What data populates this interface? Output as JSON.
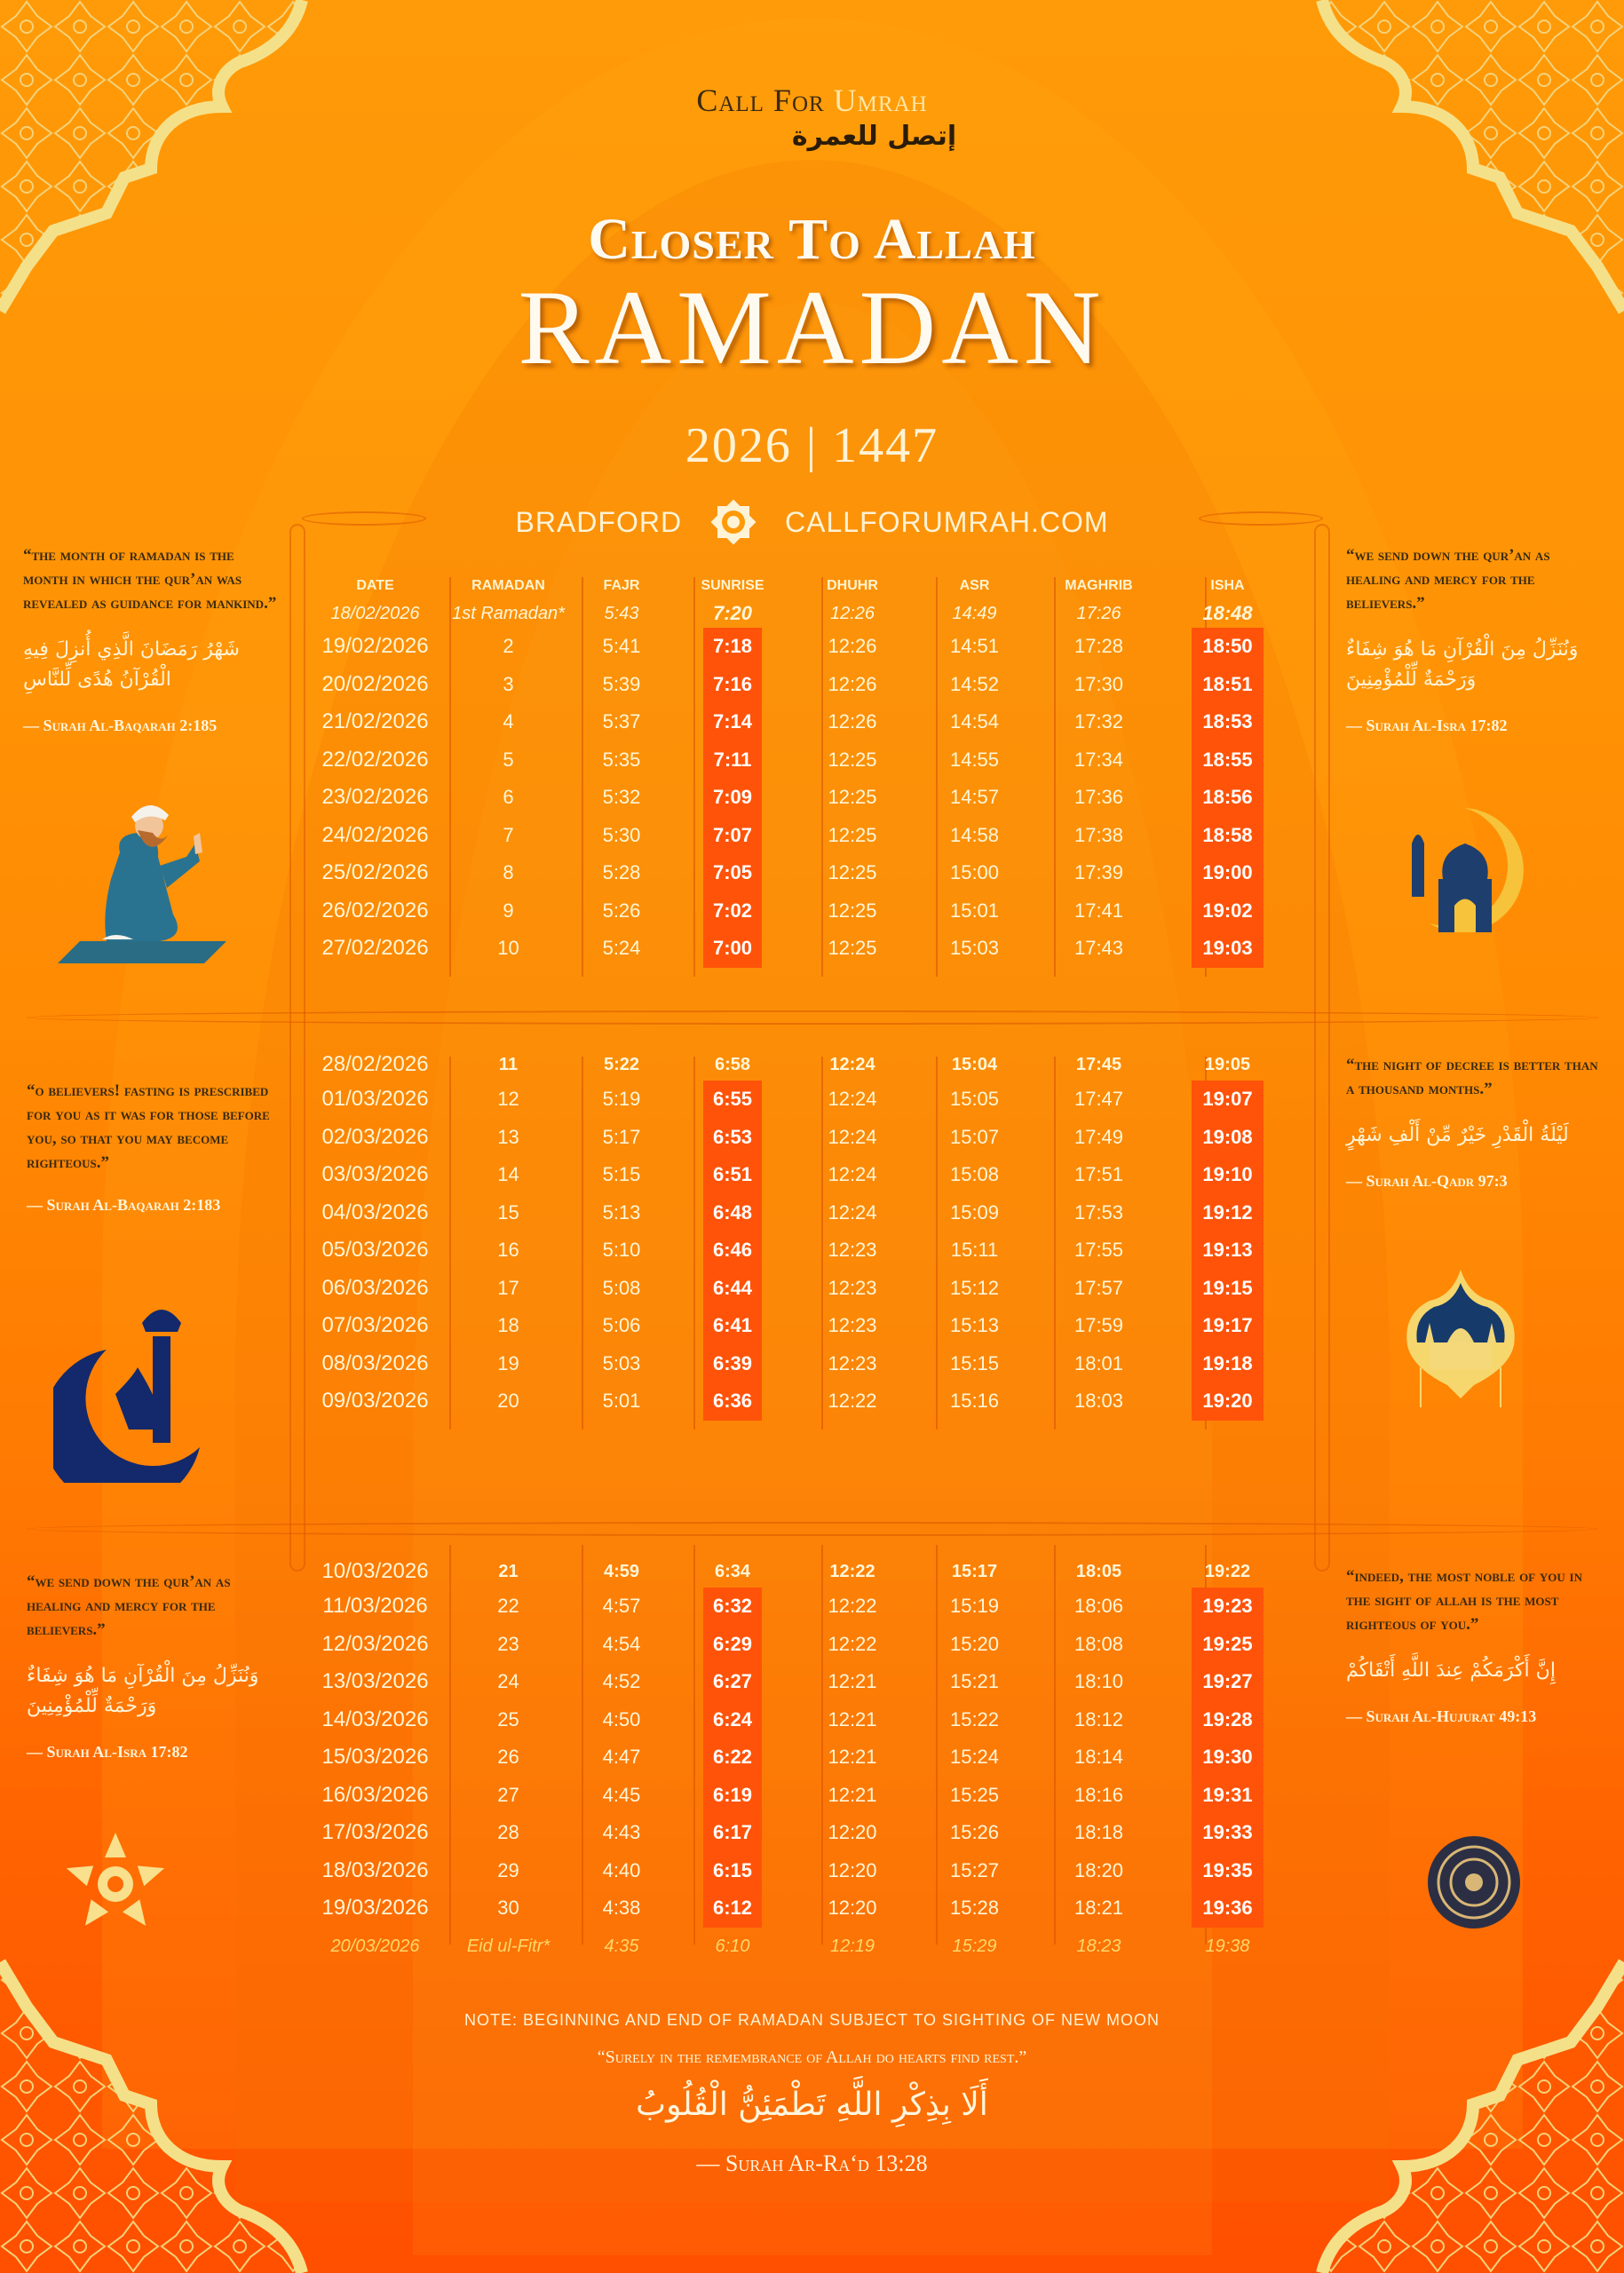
{
  "brand": {
    "name_part1": "Call For ",
    "name_part2": "Umrah",
    "arabic": "إتصل للعمرة"
  },
  "title": {
    "line1": "Closer To Allah",
    "line2": "RAMADAN",
    "years": "2026 | 1447"
  },
  "location": {
    "city": "BRADFORD",
    "website": "CALLFORUMRAH.COM",
    "icon": "eight-point-star-icon"
  },
  "colors": {
    "highlight_column": "#ff5309",
    "quote_text": "#3a2a10",
    "background_top": "#ff9a08",
    "background_bottom": "#ff4f00",
    "eid_text": "#ffd86a"
  },
  "table": {
    "headers": [
      "DATE",
      "RAMADAN",
      "FAJR",
      "SUNRISE",
      "DHUHR",
      "ASR",
      "MAGHRIB",
      "ISHA"
    ],
    "rows": [
      [
        "18/02/2026",
        "1st Ramadan*",
        "5:43",
        "7:20",
        "12:26",
        "14:49",
        "17:26",
        "18:48"
      ],
      [
        "19/02/2026",
        "2",
        "5:41",
        "7:18",
        "12:26",
        "14:51",
        "17:28",
        "18:50"
      ],
      [
        "20/02/2026",
        "3",
        "5:39",
        "7:16",
        "12:26",
        "14:52",
        "17:30",
        "18:51"
      ],
      [
        "21/02/2026",
        "4",
        "5:37",
        "7:14",
        "12:26",
        "14:54",
        "17:32",
        "18:53"
      ],
      [
        "22/02/2026",
        "5",
        "5:35",
        "7:11",
        "12:25",
        "14:55",
        "17:34",
        "18:55"
      ],
      [
        "23/02/2026",
        "6",
        "5:32",
        "7:09",
        "12:25",
        "14:57",
        "17:36",
        "18:56"
      ],
      [
        "24/02/2026",
        "7",
        "5:30",
        "7:07",
        "12:25",
        "14:58",
        "17:38",
        "18:58"
      ],
      [
        "25/02/2026",
        "8",
        "5:28",
        "7:05",
        "12:25",
        "15:00",
        "17:39",
        "19:00"
      ],
      [
        "26/02/2026",
        "9",
        "5:26",
        "7:02",
        "12:25",
        "15:01",
        "17:41",
        "19:02"
      ],
      [
        "27/02/2026",
        "10",
        "5:24",
        "7:00",
        "12:25",
        "15:03",
        "17:43",
        "19:03"
      ],
      [
        "28/02/2026",
        "11",
        "5:22",
        "6:58",
        "12:24",
        "15:04",
        "17:45",
        "19:05"
      ],
      [
        "01/03/2026",
        "12",
        "5:19",
        "6:55",
        "12:24",
        "15:05",
        "17:47",
        "19:07"
      ],
      [
        "02/03/2026",
        "13",
        "5:17",
        "6:53",
        "12:24",
        "15:07",
        "17:49",
        "19:08"
      ],
      [
        "03/03/2026",
        "14",
        "5:15",
        "6:51",
        "12:24",
        "15:08",
        "17:51",
        "19:10"
      ],
      [
        "04/03/2026",
        "15",
        "5:13",
        "6:48",
        "12:24",
        "15:09",
        "17:53",
        "19:12"
      ],
      [
        "05/03/2026",
        "16",
        "5:10",
        "6:46",
        "12:23",
        "15:11",
        "17:55",
        "19:13"
      ],
      [
        "06/03/2026",
        "17",
        "5:08",
        "6:44",
        "12:23",
        "15:12",
        "17:57",
        "19:15"
      ],
      [
        "07/03/2026",
        "18",
        "5:06",
        "6:41",
        "12:23",
        "15:13",
        "17:59",
        "19:17"
      ],
      [
        "08/03/2026",
        "19",
        "5:03",
        "6:39",
        "12:23",
        "15:15",
        "18:01",
        "19:18"
      ],
      [
        "09/03/2026",
        "20",
        "5:01",
        "6:36",
        "12:22",
        "15:16",
        "18:03",
        "19:20"
      ],
      [
        "10/03/2026",
        "21",
        "4:59",
        "6:34",
        "12:22",
        "15:17",
        "18:05",
        "19:22"
      ],
      [
        "11/03/2026",
        "22",
        "4:57",
        "6:32",
        "12:22",
        "15:19",
        "18:06",
        "19:23"
      ],
      [
        "12/03/2026",
        "23",
        "4:54",
        "6:29",
        "12:22",
        "15:20",
        "18:08",
        "19:25"
      ],
      [
        "13/03/2026",
        "24",
        "4:52",
        "6:27",
        "12:21",
        "15:21",
        "18:10",
        "19:27"
      ],
      [
        "14/03/2026",
        "25",
        "4:50",
        "6:24",
        "12:21",
        "15:22",
        "18:12",
        "19:28"
      ],
      [
        "15/03/2026",
        "26",
        "4:47",
        "6:22",
        "12:21",
        "15:24",
        "18:14",
        "19:30"
      ],
      [
        "16/03/2026",
        "27",
        "4:45",
        "6:19",
        "12:21",
        "15:25",
        "18:16",
        "19:31"
      ],
      [
        "17/03/2026",
        "28",
        "4:43",
        "6:17",
        "12:20",
        "15:26",
        "18:18",
        "19:33"
      ],
      [
        "18/03/2026",
        "29",
        "4:40",
        "6:15",
        "12:20",
        "15:27",
        "18:20",
        "19:35"
      ],
      [
        "19/03/2026",
        "30",
        "4:38",
        "6:12",
        "12:20",
        "15:28",
        "18:21",
        "19:36"
      ],
      [
        "20/03/2026",
        "Eid ul-Fitr*",
        "4:35",
        "6:10",
        "12:19",
        "15:29",
        "18:23",
        "19:38"
      ]
    ]
  },
  "quotes": {
    "left": [
      {
        "english": "“The month of Ramadan is the month in which the Qur’an was revealed as guidance for mankind.”",
        "arabic": "شَهْرُ رَمَضَانَ الَّذِي أُنزِلَ فِيهِ الْقُرْآنُ هُدًى لِّلنَّاسِ",
        "source": "— Surah Al-Baqarah 2:185",
        "illustration": "praying-man-icon"
      },
      {
        "english": "“O believers! Fasting is prescribed for you as it was for those before you, so that you may become righteous.”",
        "arabic": "",
        "source": "— Surah Al-Baqarah 2:183",
        "illustration": "crescent-minaret-icon"
      },
      {
        "english": "“We send down the Qur’an as healing and mercy for the believers.”",
        "arabic": "وَنُنَزِّلُ مِنَ الْقُرْآنِ مَا هُوَ شِفَاءٌ وَرَحْمَةٌ لِّلْمُؤْمِنِينَ",
        "source": "— Surah Al-Isra 17:82",
        "illustration": "geometric-flower-icon"
      }
    ],
    "right": [
      {
        "english": "“We send down the Qur’an as healing and mercy for the believers.”",
        "arabic": "وَنُنَزِّلُ مِنَ الْقُرْآنِ مَا هُوَ شِفَاءٌ وَرَحْمَةٌ لِّلْمُؤْمِنِينَ",
        "source": "— Surah Al-Isra 17:82",
        "illustration": "mosque-crescent-icon"
      },
      {
        "english": "“The Night of Decree is better than a thousand months.”",
        "arabic": "لَيْلَةُ الْقَدْرِ خَيْرٌ مِّنْ أَلْفِ شَهْرٍ",
        "source": "— Surah Al-Qadr 97:3",
        "illustration": "mosque-lantern-icon"
      },
      {
        "english": "“Indeed, the most noble of you in the sight of Allah is the most righteous of you.”",
        "arabic": "إِنَّ أَكْرَمَكُمْ عِندَ اللَّهِ أَتْقَاكُمْ",
        "source": "— Surah Al-Hujurat 49:13",
        "illustration": "mandala-icon"
      }
    ]
  },
  "footer": {
    "note": "NOTE: BEGINNING AND END OF RAMADAN SUBJECT TO SIGHTING OF NEW MOON",
    "quote": "“Surely in the remembrance of Allah do hearts find rest.”",
    "arabic": "أَلَا بِذِكْرِ اللَّهِ تَطْمَئِنُّ الْقُلُوبُ",
    "source": "— Surah Ar-Ra‘d 13:28"
  }
}
